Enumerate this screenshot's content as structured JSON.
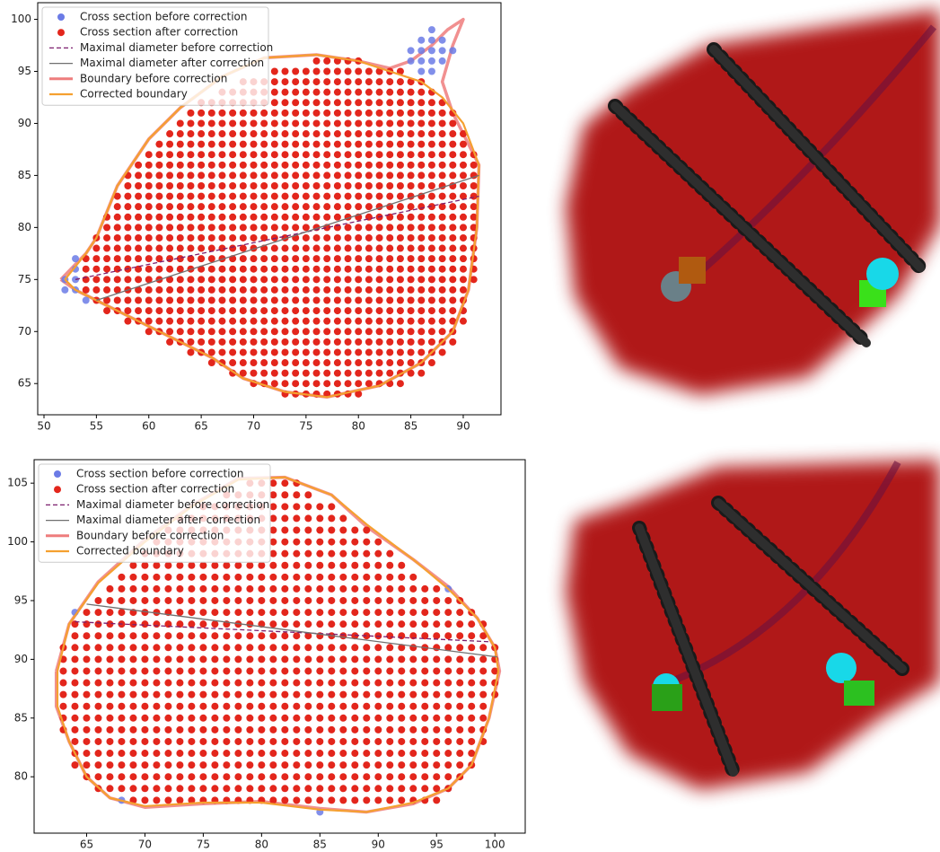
{
  "chart_data": [
    {
      "type": "scatter",
      "xlim": [
        49.4,
        93.6
      ],
      "ylim": [
        62,
        101.6
      ],
      "xticks": [
        50,
        55,
        60,
        65,
        70,
        75,
        80,
        85,
        90
      ],
      "yticks": [
        65,
        70,
        75,
        80,
        85,
        90,
        95,
        100
      ],
      "series": [
        {
          "name": "Cross section before correction",
          "color": "#6b7be6",
          "kind": "points",
          "x": [
            85,
            86,
            87,
            86,
            87,
            88,
            87,
            86,
            87,
            88,
            85,
            86,
            87,
            88,
            89,
            52,
            52,
            53,
            53,
            53,
            53,
            54,
            65,
            90
          ],
          "y": [
            97,
            97,
            97,
            98,
            98,
            98,
            99,
            96,
            96,
            96,
            96,
            95,
            95,
            97,
            97,
            75,
            74,
            77,
            76,
            75,
            74,
            73,
            68,
            72
          ]
        },
        {
          "name": "Cross section after correction",
          "color": "#e3261c",
          "kind": "grid",
          "rows": [
            [
              64,
              73,
              80
            ],
            [
              65,
              70,
              84
            ],
            [
              66,
              68,
              86
            ],
            [
              67,
              66,
              87
            ],
            [
              68,
              64,
              88
            ],
            [
              69,
              62,
              89
            ],
            [
              70,
              60,
              89
            ],
            [
              71,
              58,
              90
            ],
            [
              72,
              56,
              90
            ],
            [
              73,
              55,
              90
            ],
            [
              74,
              54,
              90
            ],
            [
              75,
              54,
              91
            ],
            [
              76,
              54,
              91
            ],
            [
              77,
              54,
              91
            ],
            [
              78,
              55,
              91
            ],
            [
              79,
              55,
              91
            ],
            [
              80,
              56,
              91
            ],
            [
              81,
              56,
              91
            ],
            [
              82,
              57,
              91
            ],
            [
              83,
              57,
              91
            ],
            [
              84,
              58,
              91
            ],
            [
              85,
              58,
              91
            ],
            [
              86,
              59,
              91
            ],
            [
              87,
              60,
              91
            ],
            [
              88,
              61,
              90
            ],
            [
              89,
              62,
              90
            ],
            [
              90,
              63,
              89
            ],
            [
              91,
              64,
              89
            ],
            [
              92,
              65,
              88
            ],
            [
              93,
              67,
              87
            ],
            [
              94,
              69,
              86
            ],
            [
              95,
              72,
              84
            ],
            [
              96,
              76,
              80
            ]
          ]
        },
        {
          "name": "Maximal diameter before correction",
          "color": "#7b1f6e",
          "kind": "line",
          "dash": true,
          "width": 1.3,
          "x": [
            53,
            91.5
          ],
          "y": [
            75,
            83
          ]
        },
        {
          "name": "Maximal diameter after correction",
          "color": "#707070",
          "kind": "line",
          "width": 1.3,
          "x": [
            55,
            91.5
          ],
          "y": [
            73,
            85
          ]
        },
        {
          "name": "Boundary before correction",
          "color": "#ee7d7d",
          "kind": "line",
          "width": 3.5,
          "x": [
            51.6,
            54,
            55,
            57,
            60,
            63,
            67,
            71,
            76,
            80,
            83,
            85,
            87,
            88.5,
            90,
            89,
            88,
            89,
            90.5,
            91.5,
            91.3,
            90.5,
            89,
            86,
            82,
            77,
            73,
            69,
            66,
            63,
            60,
            57,
            55,
            53,
            51.6
          ],
          "y": [
            75,
            77.5,
            79,
            84,
            88.5,
            91.5,
            94.5,
            96.3,
            96.6,
            96,
            95.3,
            96,
            97.5,
            99,
            100,
            97.5,
            94,
            91,
            88,
            86,
            80,
            74,
            70,
            67,
            64.8,
            63.7,
            64.2,
            65.5,
            67.5,
            69,
            70.5,
            72,
            73,
            74,
            75
          ]
        },
        {
          "name": "Corrected boundary",
          "color": "#f5a030",
          "kind": "line",
          "width": 2.2,
          "x": [
            52,
            54,
            55,
            57,
            60,
            63,
            67,
            71,
            76,
            80,
            83,
            86,
            88,
            90,
            91.5,
            91.3,
            90.5,
            89,
            86,
            82,
            77,
            73,
            69,
            66,
            63,
            60,
            57,
            55,
            53,
            52
          ],
          "y": [
            75,
            77.5,
            79,
            84,
            88.5,
            91.5,
            94.5,
            96.3,
            96.6,
            96,
            95,
            94,
            92.5,
            90,
            86,
            80,
            74,
            70,
            67,
            64.8,
            63.7,
            64.2,
            65.5,
            67.5,
            69,
            70.5,
            72,
            73,
            74,
            75
          ]
        }
      ]
    },
    {
      "type": "scatter",
      "xlim": [
        60.5,
        102.6
      ],
      "ylim": [
        75.2,
        107
      ],
      "xticks": [
        65,
        70,
        75,
        80,
        85,
        90,
        95,
        100
      ],
      "yticks": [
        80,
        85,
        90,
        95,
        100,
        105
      ],
      "series": [
        {
          "name": "Cross section before correction",
          "color": "#6b7be6",
          "kind": "points",
          "x": [
            64,
            64,
            68,
            85,
            96,
            96,
            100
          ],
          "y": [
            94,
            81,
            78,
            77,
            96,
            79,
            91
          ]
        },
        {
          "name": "Cross section after correction",
          "color": "#e3261c",
          "kind": "grid",
          "rows": [
            [
              78,
              69,
              95
            ],
            [
              79,
              66,
              96
            ],
            [
              80,
              65,
              97
            ],
            [
              81,
              64,
              98
            ],
            [
              82,
              64,
              98
            ],
            [
              83,
              64,
              99
            ],
            [
              84,
              63,
              99
            ],
            [
              85,
              63,
              99
            ],
            [
              86,
              63,
              99
            ],
            [
              87,
              63,
              100
            ],
            [
              88,
              63,
              100
            ],
            [
              89,
              63,
              100
            ],
            [
              90,
              63,
              100
            ],
            [
              91,
              63,
              100
            ],
            [
              92,
              64,
              99
            ],
            [
              93,
              64,
              99
            ],
            [
              94,
              65,
              98
            ],
            [
              95,
              66,
              97
            ],
            [
              96,
              67,
              95
            ],
            [
              97,
              68,
              93
            ],
            [
              98,
              69,
              92
            ],
            [
              99,
              70,
              91
            ],
            [
              100,
              71,
              90
            ],
            [
              101,
              72,
              89
            ],
            [
              102,
              73,
              87
            ],
            [
              103,
              75,
              86
            ],
            [
              104,
              77,
              84
            ],
            [
              105,
              79,
              83
            ]
          ]
        },
        {
          "name": "Maximal diameter before correction",
          "color": "#7b1f6e",
          "kind": "line",
          "dash": true,
          "width": 1.3,
          "x": [
            64,
            99.5
          ],
          "y": [
            93.2,
            91.5
          ]
        },
        {
          "name": "Maximal diameter after correction",
          "color": "#707070",
          "kind": "line",
          "width": 1.3,
          "x": [
            65,
            100.2
          ],
          "y": [
            94.7,
            90.2
          ]
        },
        {
          "name": "Boundary before correction",
          "color": "#ee7d7d",
          "kind": "line",
          "width": 3.5,
          "x": [
            62.4,
            63.5,
            66,
            70,
            74,
            78,
            82,
            86,
            89,
            93,
            96,
            98.5,
            100,
            100.4,
            99.5,
            98,
            96,
            93,
            89,
            85,
            80,
            75,
            70,
            67,
            65,
            63.5,
            62.4,
            62.4
          ],
          "y": [
            89,
            93,
            96.6,
            100.2,
            103.1,
            105.4,
            105.5,
            104,
            101.3,
            98.5,
            96.2,
            93.5,
            91,
            89,
            85,
            81,
            79,
            77.7,
            77,
            77.3,
            77.9,
            77.7,
            77.4,
            78.2,
            80,
            83,
            86,
            89
          ]
        },
        {
          "name": "Corrected boundary",
          "color": "#f5a030",
          "kind": "line",
          "width": 2.2,
          "x": [
            62.5,
            63.5,
            66,
            70,
            74,
            78,
            82,
            86,
            89,
            93,
            96,
            98.5,
            100,
            100.3,
            99.5,
            98,
            96,
            93,
            89,
            85,
            80,
            75,
            70,
            67,
            65,
            63.5,
            62.5,
            62.5
          ],
          "y": [
            89,
            93,
            96.5,
            100,
            103,
            105.3,
            105.5,
            104,
            101.5,
            98.5,
            96,
            93.5,
            91,
            89,
            85,
            81,
            79,
            77.8,
            77,
            77.2,
            77.8,
            77.8,
            77.5,
            78.2,
            80,
            83,
            86,
            89
          ]
        }
      ]
    }
  ]
}
